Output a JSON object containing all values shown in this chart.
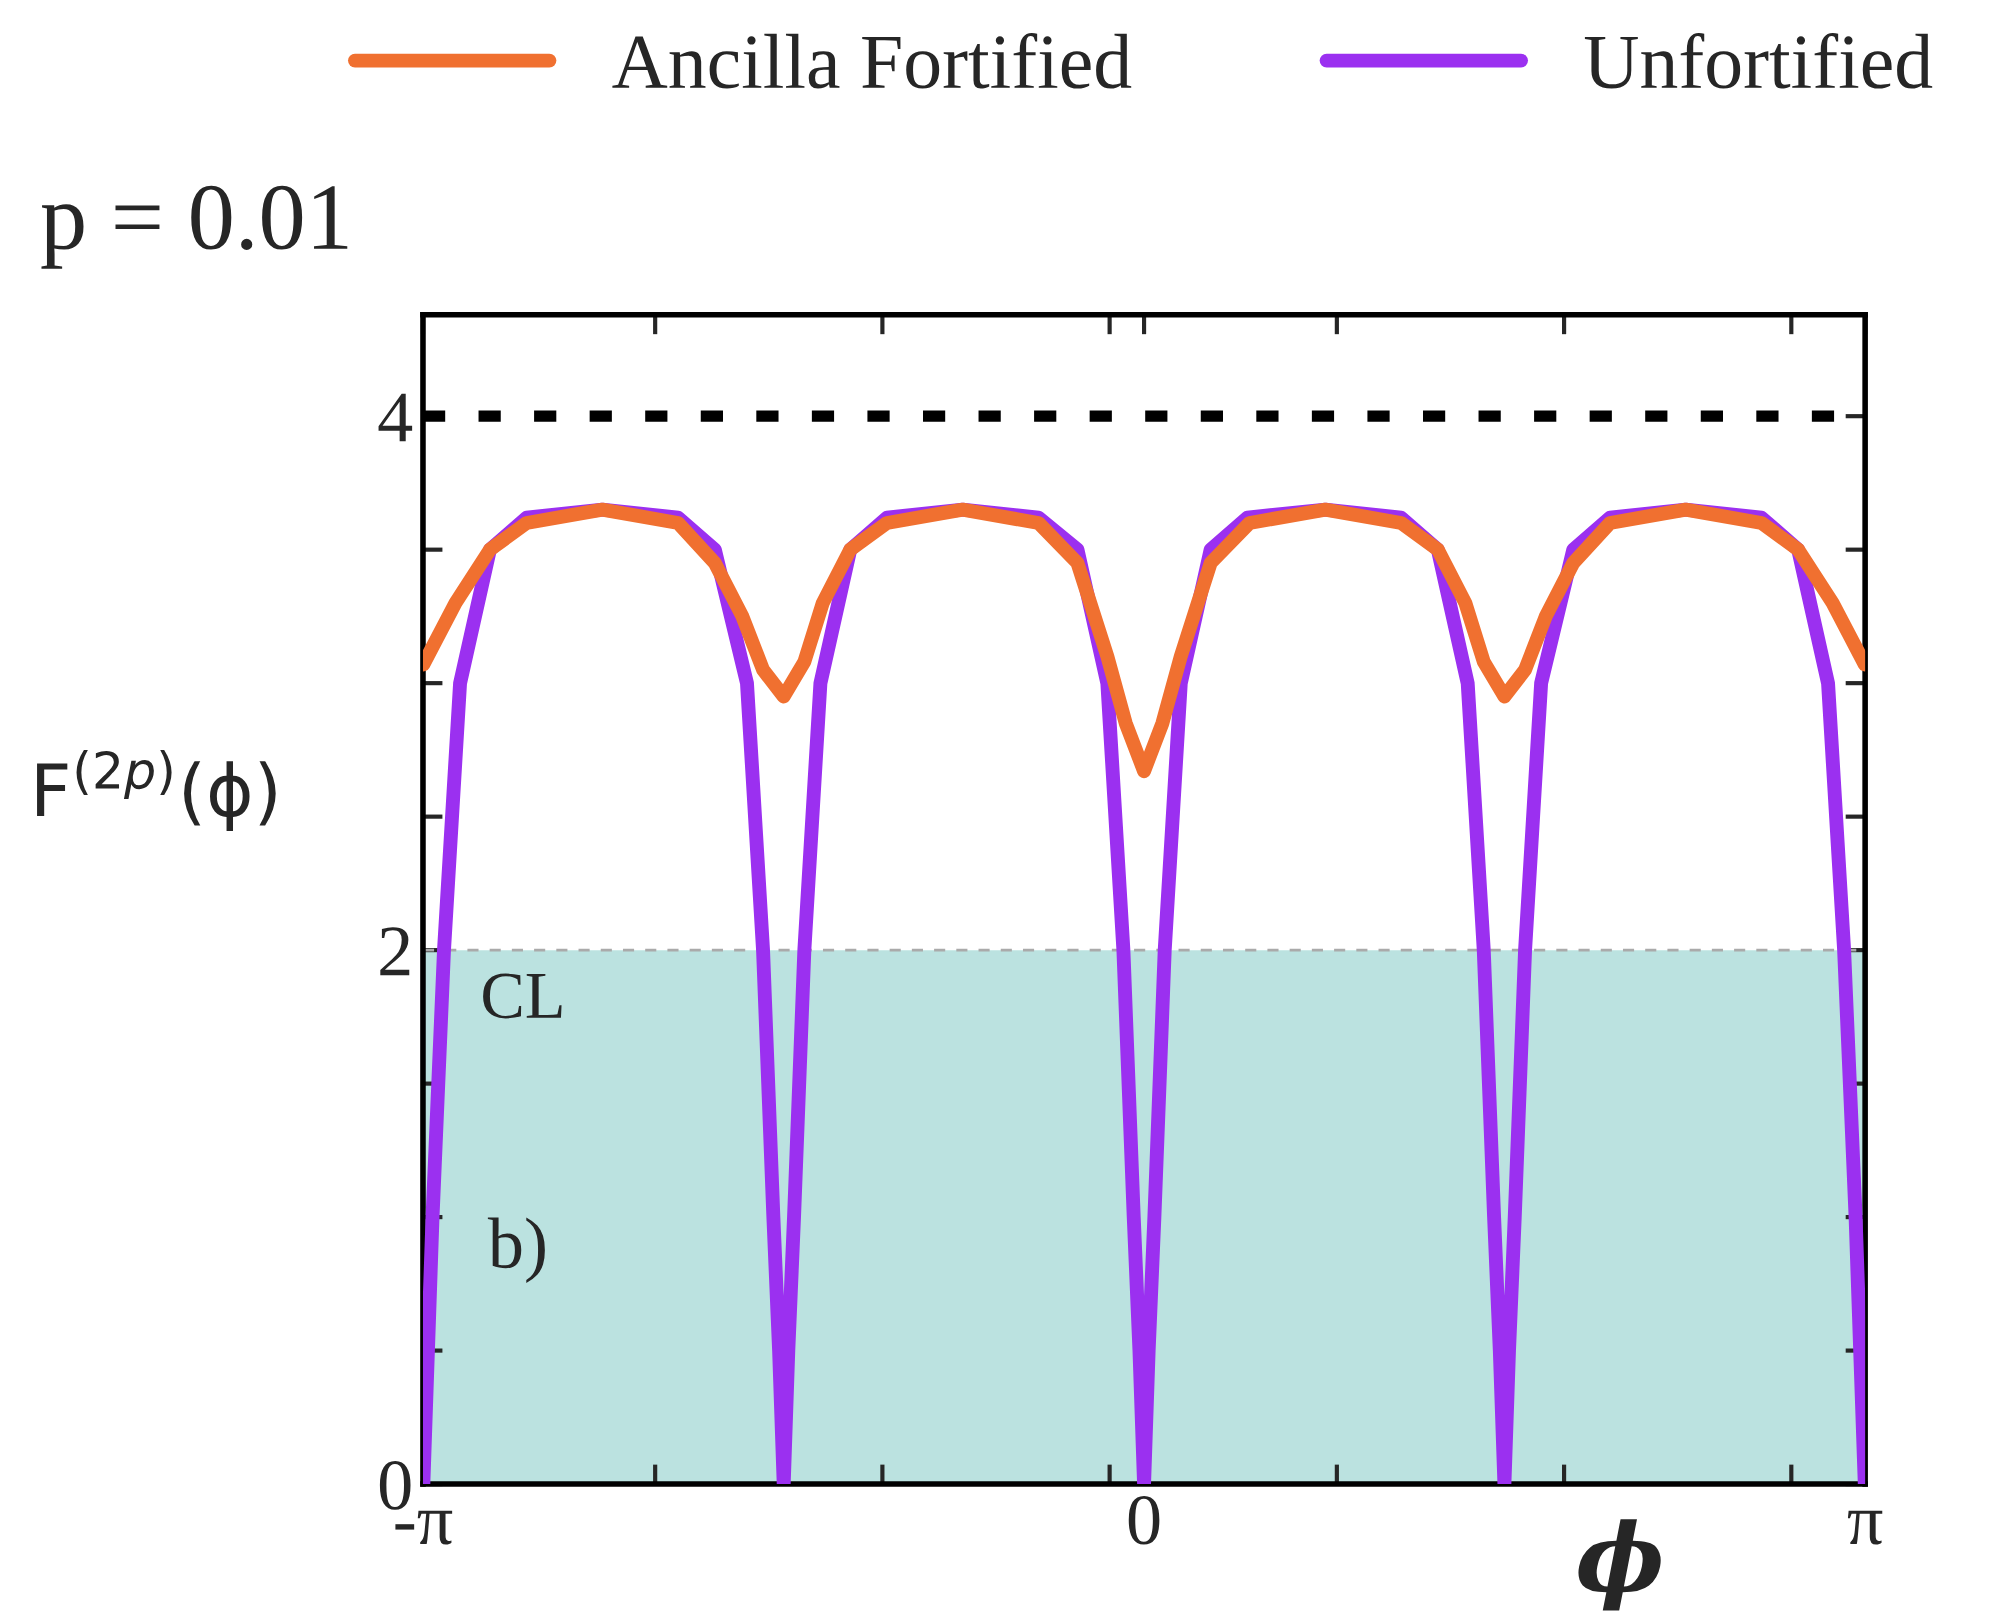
{
  "chart_data": {
    "type": "line",
    "title": "p = 0.01",
    "xlabel": "ϕ",
    "ylabel": "F$^{(2p)}$(ϕ)",
    "annotations": [
      "b)"
    ],
    "xlim": [
      -3.1416,
      3.1416
    ],
    "xticks": [
      {
        "value": -3.1416,
        "label": "-π"
      },
      {
        "value": -2.13,
        "label": null
      },
      {
        "value": -1.14,
        "label": null
      },
      {
        "value": -0.15,
        "label": null
      },
      {
        "value": 0,
        "label": "0"
      },
      {
        "value": 0.84,
        "label": null
      },
      {
        "value": 1.83,
        "label": null
      },
      {
        "value": 2.82,
        "label": null
      },
      {
        "value": 3.1416,
        "label": "π"
      }
    ],
    "ylim": [
      0,
      4.38
    ],
    "yticks": [
      0,
      {
        "value": 0.5,
        "label": null
      },
      {
        "value": 1,
        "label": null
      },
      {
        "value": 1.5,
        "label": null
      },
      2,
      {
        "value": 2.5,
        "label": null
      },
      {
        "value": 3,
        "label": null
      },
      {
        "value": 3.5,
        "label": null
      },
      4
    ],
    "grid": false,
    "legend": "top",
    "line_style": "solid",
    "marker": "none",
    "ref_lines": [
      {
        "axis": "y",
        "value": 4,
        "label": null,
        "color": "#000000",
        "line_style": "dashed"
      },
      {
        "axis": "y",
        "value": 2,
        "label": "CL",
        "color": "#aaaaaa",
        "line_style": "dashed"
      }
    ],
    "bands": [
      {
        "axis": "y",
        "from": 0,
        "to": 2,
        "label": null,
        "color": "#8ecfcc"
      }
    ],
    "series": [
      {
        "name": "Unfortified",
        "color": "#9b30f0",
        "x": [
          -3.14,
          -3.12,
          -3.1,
          -3.05,
          -2.98,
          -2.85,
          -2.69,
          -2.36,
          -2.03,
          -1.87,
          -1.73,
          -1.66,
          -1.615,
          -1.59,
          -1.57,
          -1.55,
          -1.525,
          -1.48,
          -1.41,
          -1.28,
          -1.12,
          -0.79,
          -0.46,
          -0.29,
          -0.16,
          -0.09,
          -0.045,
          -0.02,
          0,
          0.02,
          0.045,
          0.09,
          0.16,
          0.29,
          0.45,
          0.79,
          1.12,
          1.28,
          1.41,
          1.48,
          1.525,
          1.55,
          1.57,
          1.59,
          1.615,
          1.66,
          1.73,
          1.87,
          2.03,
          2.36,
          2.69,
          2.85,
          2.98,
          3.05,
          3.1,
          3.12,
          3.14
        ],
        "values": [
          0,
          0.5,
          1,
          2,
          3,
          3.5,
          3.62,
          3.65,
          3.62,
          3.5,
          3,
          2,
          1,
          0.5,
          0,
          0.5,
          1,
          2,
          3,
          3.5,
          3.62,
          3.65,
          3.62,
          3.5,
          3,
          2,
          1,
          0.5,
          0,
          0.5,
          1,
          2,
          3,
          3.5,
          3.62,
          3.65,
          3.62,
          3.5,
          3,
          2,
          1,
          0.5,
          0,
          0.5,
          1,
          2,
          3,
          3.5,
          3.62,
          3.65,
          3.62,
          3.5,
          3,
          2,
          1,
          0.5,
          0
        ]
      },
      {
        "name": "Ancilla Fortified",
        "color": "#f07030",
        "x": [
          -3.14,
          -3.0,
          -2.85,
          -2.69,
          -2.36,
          -2.03,
          -1.87,
          -1.75,
          -1.66,
          -1.57,
          -1.48,
          -1.4,
          -1.28,
          -1.12,
          -0.79,
          -0.46,
          -0.29,
          -0.16,
          -0.08,
          0,
          0.08,
          0.16,
          0.29,
          0.46,
          0.79,
          1.12,
          1.28,
          1.4,
          1.48,
          1.57,
          1.66,
          1.75,
          1.87,
          2.03,
          2.36,
          2.69,
          2.85,
          3.0,
          3.14
        ],
        "values": [
          3.07,
          3.3,
          3.5,
          3.6,
          3.65,
          3.6,
          3.45,
          3.25,
          3.05,
          2.95,
          3.08,
          3.3,
          3.5,
          3.6,
          3.65,
          3.6,
          3.45,
          3.1,
          2.85,
          2.67,
          2.85,
          3.1,
          3.45,
          3.6,
          3.65,
          3.6,
          3.5,
          3.3,
          3.08,
          2.95,
          3.05,
          3.25,
          3.45,
          3.6,
          3.65,
          3.6,
          3.5,
          3.3,
          3.07
        ]
      }
    ]
  }
}
